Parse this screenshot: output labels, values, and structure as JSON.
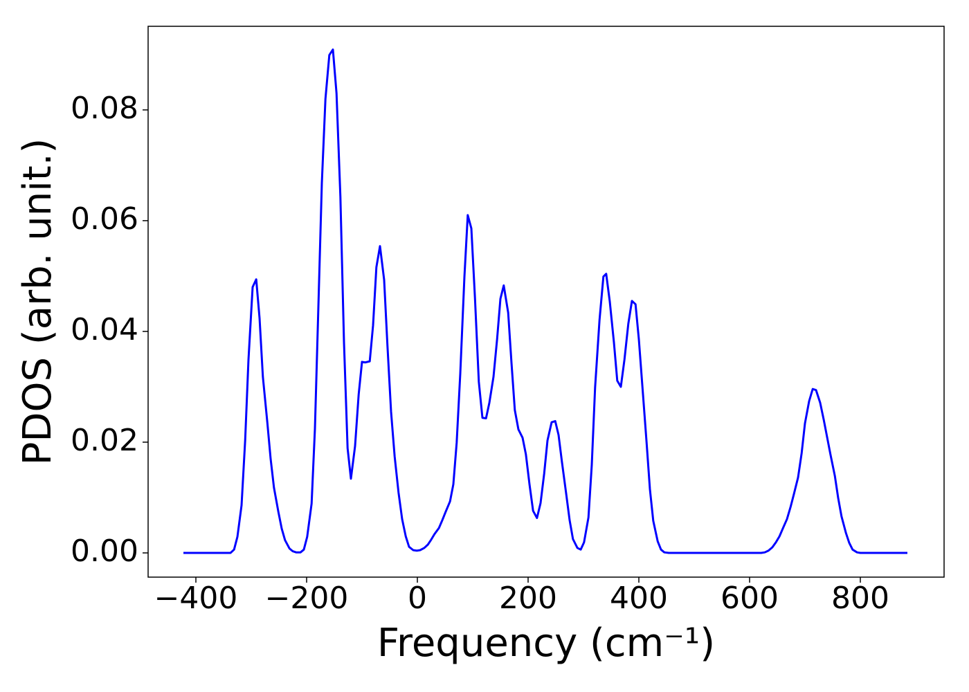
{
  "chart_data": {
    "type": "line",
    "xlabel": "Frequency (cm⁻¹)",
    "ylabel": "PDOS (arb. unit.)",
    "xlim": [
      -486.25,
      951.25
    ],
    "ylim": [
      -0.004375,
      0.0951
    ],
    "xticks": [
      {
        "value": -400,
        "label": "−400"
      },
      {
        "value": -200,
        "label": "−200"
      },
      0,
      200,
      400,
      600,
      800
    ],
    "yticks": [
      {
        "value": 0,
        "label": "0.00"
      },
      {
        "value": 0.02,
        "label": "0.02"
      },
      {
        "value": 0.04,
        "label": "0.04"
      },
      {
        "value": 0.06,
        "label": "0.06"
      },
      {
        "value": 0.08,
        "label": "0.08"
      }
    ],
    "grid": false,
    "x": [
      -422.5,
      -337.5,
      -331,
      -325,
      -317.5,
      -311,
      -305,
      -297.5,
      -291,
      -285,
      -279,
      -271,
      -265,
      -259,
      -251,
      -245,
      -239,
      -231,
      -225,
      -219,
      -211,
      -205,
      -199,
      -191,
      -185,
      -179,
      -172.5,
      -166,
      -159,
      -152.5,
      -146,
      -139,
      -132.5,
      -126,
      -120,
      -112.5,
      -106,
      -100,
      -94,
      -86,
      -80,
      -74,
      -67.5,
      -60,
      -54,
      -47.5,
      -41,
      -34,
      -27.5,
      -21,
      -15,
      -7.5,
      -1,
      5,
      12.5,
      19,
      25,
      31,
      39,
      45,
      51,
      59,
      65,
      71,
      77.5,
      85,
      91,
      97.5,
      104,
      111,
      117.5,
      124,
      130,
      137.5,
      144,
      150,
      156,
      164,
      170,
      176,
      182.5,
      190,
      196,
      202.5,
      209,
      216,
      222.5,
      229,
      235,
      242.5,
      249,
      255,
      261,
      269,
      275,
      281,
      289,
      295,
      301,
      309,
      315,
      321,
      329,
      336,
      341,
      347.5,
      355,
      361,
      367.5,
      374,
      381,
      387.5,
      394,
      400,
      407.5,
      414,
      420,
      426,
      434,
      440,
      446,
      454,
      621,
      627.5,
      634,
      641,
      647.5,
      654,
      660,
      667.5,
      674,
      680,
      687.5,
      694,
      700,
      707.5,
      714,
      720,
      727.5,
      734,
      740,
      746,
      754,
      760,
      766,
      774,
      780,
      786,
      794,
      800,
      885
    ],
    "series": [
      {
        "name": "PDOS",
        "color": "#0000ff",
        "values": [
          0,
          0,
          0.0006,
          0.0029,
          0.0086,
          0.0203,
          0.0349,
          0.048,
          0.0494,
          0.0424,
          0.0318,
          0.0236,
          0.017,
          0.0118,
          0.0074,
          0.0044,
          0.0023,
          0.0008,
          0.0003,
          0.0001,
          0.0001,
          0.0006,
          0.0029,
          0.0089,
          0.0224,
          0.0436,
          0.0668,
          0.082,
          0.0899,
          0.0909,
          0.083,
          0.0643,
          0.038,
          0.0189,
          0.0134,
          0.0193,
          0.0286,
          0.0345,
          0.0344,
          0.0346,
          0.0411,
          0.0516,
          0.0554,
          0.0493,
          0.0374,
          0.0255,
          0.0174,
          0.0109,
          0.0061,
          0.003,
          0.0011,
          0.0005,
          0.0004,
          0.0005,
          0.0009,
          0.0015,
          0.0024,
          0.0034,
          0.0045,
          0.0059,
          0.0074,
          0.0093,
          0.0124,
          0.0199,
          0.0324,
          0.0499,
          0.061,
          0.0586,
          0.0461,
          0.0309,
          0.0244,
          0.0243,
          0.0271,
          0.0318,
          0.0386,
          0.0459,
          0.0483,
          0.0434,
          0.0343,
          0.0258,
          0.0223,
          0.0208,
          0.0178,
          0.0124,
          0.0076,
          0.0063,
          0.009,
          0.0143,
          0.0203,
          0.0236,
          0.0238,
          0.0213,
          0.0165,
          0.0105,
          0.0059,
          0.0025,
          0.0009,
          0.0006,
          0.0019,
          0.0064,
          0.0159,
          0.0299,
          0.0421,
          0.0499,
          0.0504,
          0.0454,
          0.038,
          0.0311,
          0.03,
          0.0349,
          0.0414,
          0.0455,
          0.0449,
          0.0386,
          0.0286,
          0.0199,
          0.0115,
          0.0058,
          0.0021,
          0.0006,
          0.0001,
          0,
          0,
          0.0001,
          0.0004,
          0.001,
          0.0019,
          0.003,
          0.0044,
          0.0061,
          0.0083,
          0.0106,
          0.0136,
          0.018,
          0.0234,
          0.0274,
          0.0296,
          0.0294,
          0.0271,
          0.024,
          0.0209,
          0.0178,
          0.0139,
          0.0099,
          0.0066,
          0.0036,
          0.0018,
          0.0006,
          0.0001,
          0,
          0
        ]
      }
    ]
  }
}
